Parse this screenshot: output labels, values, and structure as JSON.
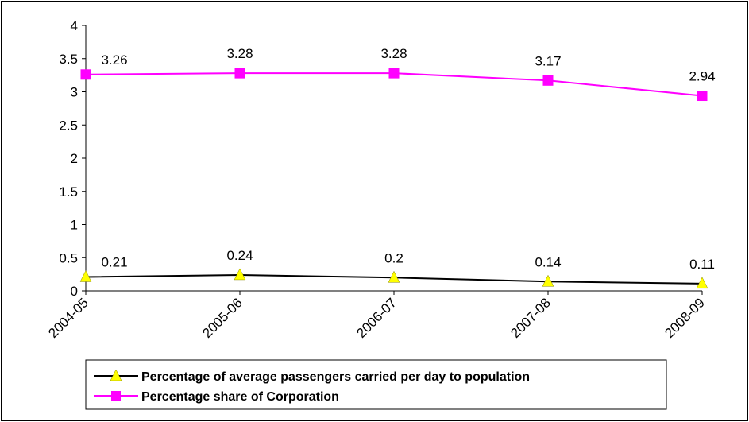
{
  "chart_data": {
    "type": "line",
    "categories": [
      "2004-05",
      "2005-06",
      "2006-07",
      "2007-08",
      "2008-09"
    ],
    "series": [
      {
        "name": "Percentage of average passengers carried per day to population",
        "values": [
          0.21,
          0.24,
          0.2,
          0.14,
          0.11
        ],
        "value_labels": [
          "0.21",
          "0.24",
          "0.2",
          "0.14",
          "0.11"
        ],
        "line_color": "#000000",
        "marker": "triangle",
        "marker_color": "#ffff00"
      },
      {
        "name": "Percentage share of Corporation",
        "values": [
          3.26,
          3.28,
          3.28,
          3.17,
          2.94
        ],
        "value_labels": [
          "3.26",
          "3.28",
          "3.28",
          "3.17",
          "2.94"
        ],
        "line_color": "#ff00ff",
        "marker": "square",
        "marker_color": "#ff00ff"
      }
    ],
    "yticks": [
      "0",
      "0.5",
      "1",
      "1.5",
      "2",
      "2.5",
      "3",
      "3.5",
      "4"
    ],
    "ylim": [
      0,
      4
    ],
    "grid": false,
    "legend_position": "bottom"
  }
}
